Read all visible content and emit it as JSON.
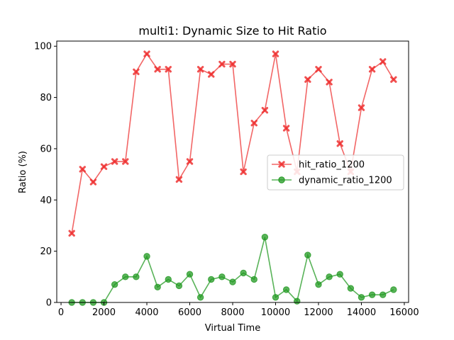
{
  "chart_data": {
    "type": "line",
    "title": "multi1: Dynamic Size to Hit Ratio",
    "xlabel": "Virtual Time",
    "ylabel": "Ratio (%)",
    "xlim": [
      -200,
      16200
    ],
    "ylim": [
      0,
      102
    ],
    "xticks": [
      0,
      2000,
      4000,
      6000,
      8000,
      10000,
      12000,
      14000,
      16000
    ],
    "yticks": [
      0,
      20,
      40,
      60,
      80,
      100
    ],
    "legend_position": "center-right",
    "grid": false,
    "x": [
      500,
      1000,
      1500,
      2000,
      2500,
      3000,
      3500,
      4000,
      4500,
      5000,
      5500,
      6000,
      6500,
      7000,
      7500,
      8000,
      8500,
      9000,
      9500,
      10000,
      10500,
      11000,
      11500,
      12000,
      12500,
      13000,
      13500,
      14000,
      14500,
      15000,
      15500
    ],
    "series": [
      {
        "name": "hit_ratio_1200",
        "color": "#ee3333",
        "marker": "x",
        "values": [
          27,
          52,
          47,
          53,
          55,
          55,
          90,
          97,
          91,
          91,
          48,
          55,
          91,
          89,
          93,
          93,
          51,
          70,
          75,
          97,
          68,
          51,
          87,
          91,
          86,
          62,
          51,
          76,
          91,
          94,
          87
        ]
      },
      {
        "name": "dynamic_ratio_1200",
        "color": "#229922",
        "marker": "o",
        "values": [
          0,
          0,
          0,
          0,
          7,
          10,
          10,
          18,
          6,
          9,
          6.5,
          11,
          2,
          9,
          10,
          8,
          11.5,
          9,
          25.5,
          2,
          5,
          0.5,
          18.5,
          7,
          10,
          11,
          5.5,
          2,
          3,
          3,
          5
        ]
      }
    ]
  }
}
